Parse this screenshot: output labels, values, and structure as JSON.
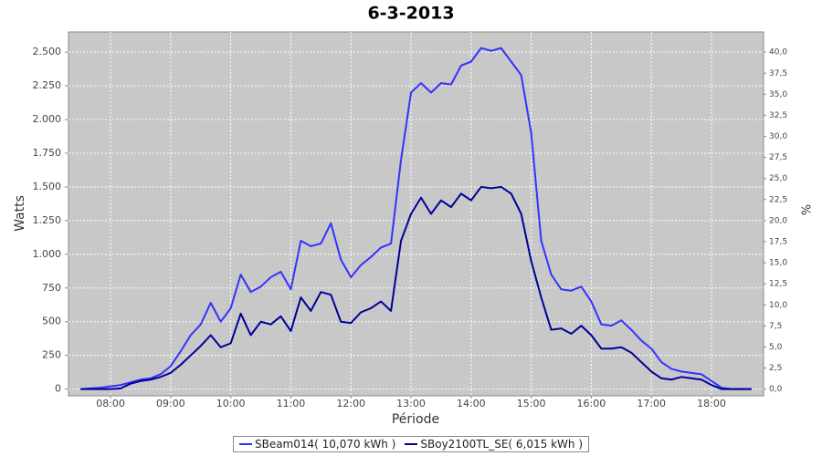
{
  "chart_data": {
    "type": "line",
    "title": "6-3-2013",
    "x_label": "Période",
    "y_label": "Watts",
    "y2_label": "%",
    "x": [
      "07:30",
      "07:40",
      "07:50",
      "08:00",
      "08:10",
      "08:20",
      "08:30",
      "08:40",
      "08:50",
      "09:00",
      "09:10",
      "09:20",
      "09:30",
      "09:40",
      "09:50",
      "10:00",
      "10:10",
      "10:20",
      "10:30",
      "10:40",
      "10:50",
      "11:00",
      "11:10",
      "11:20",
      "11:30",
      "11:40",
      "11:50",
      "12:00",
      "12:10",
      "12:20",
      "12:30",
      "12:40",
      "12:50",
      "13:00",
      "13:10",
      "13:20",
      "13:30",
      "13:40",
      "13:50",
      "14:00",
      "14:10",
      "14:20",
      "14:30",
      "14:40",
      "14:50",
      "15:00",
      "15:10",
      "15:20",
      "15:30",
      "15:40",
      "15:50",
      "16:00",
      "16:10",
      "16:20",
      "16:30",
      "16:40",
      "16:50",
      "17:00",
      "17:10",
      "17:20",
      "17:30",
      "17:40",
      "17:50",
      "18:00",
      "18:10",
      "18:20",
      "18:30",
      "18:40"
    ],
    "xlim": [
      "07:18",
      "18:52"
    ],
    "xticks": [
      "08:00",
      "09:00",
      "10:00",
      "11:00",
      "12:00",
      "13:00",
      "14:00",
      "15:00",
      "16:00",
      "17:00",
      "18:00"
    ],
    "ylim": [
      -50,
      2650
    ],
    "yticks": [
      0,
      {
        "value": 250,
        "label": "250"
      },
      500,
      750,
      {
        "value": 1000,
        "label": "1.000"
      },
      {
        "value": 1250,
        "label": "1.250"
      },
      {
        "value": 1500,
        "label": "1.500"
      },
      {
        "value": 1750,
        "label": "1.750"
      },
      {
        "value": 2000,
        "label": "2.000"
      },
      {
        "value": 2250,
        "label": "2.250"
      },
      {
        "value": 2500,
        "label": "2.500"
      }
    ],
    "y2lim": [
      -0.8,
      42.4
    ],
    "y2ticks": [
      {
        "value": 0,
        "label": "0,0"
      },
      {
        "value": 2.5,
        "label": "2,5"
      },
      {
        "value": 5,
        "label": "5,0"
      },
      {
        "value": 7.5,
        "label": "7,5"
      },
      {
        "value": 10,
        "label": "10,0"
      },
      {
        "value": 12.5,
        "label": "12,5"
      },
      {
        "value": 15,
        "label": "15,0"
      },
      {
        "value": 17.5,
        "label": "17,5"
      },
      {
        "value": 20,
        "label": "20,0"
      },
      {
        "value": 22.5,
        "label": "22,5"
      },
      {
        "value": 25,
        "label": "25,0"
      },
      {
        "value": 27.5,
        "label": "27,5"
      },
      {
        "value": 30,
        "label": "30,0"
      },
      {
        "value": 32.5,
        "label": "32,5"
      },
      {
        "value": 35,
        "label": "35,0"
      },
      {
        "value": 37.5,
        "label": "37,5"
      },
      {
        "value": 40,
        "label": "40,0"
      }
    ],
    "grid": true,
    "legend": "bottom",
    "series": [
      {
        "name": "SBeam014( 10,070 kWh )",
        "color": "#3333ff",
        "values": [
          0,
          5,
          10,
          20,
          30,
          50,
          70,
          80,
          110,
          170,
          280,
          400,
          480,
          640,
          500,
          600,
          850,
          720,
          760,
          830,
          870,
          740,
          1100,
          1060,
          1080,
          1230,
          960,
          830,
          920,
          980,
          1050,
          1080,
          1700,
          2200,
          2270,
          2200,
          2270,
          2260,
          2400,
          2430,
          2530,
          2510,
          2530,
          2430,
          2330,
          1900,
          1100,
          850,
          740,
          730,
          760,
          650,
          480,
          470,
          510,
          440,
          360,
          300,
          200,
          150,
          130,
          120,
          110,
          60,
          10,
          0,
          0,
          0
        ]
      },
      {
        "name": "SBoy2100TL_SE( 6,015 kWh )",
        "color": "#000099",
        "values": [
          0,
          0,
          0,
          0,
          5,
          40,
          60,
          70,
          90,
          120,
          180,
          250,
          320,
          400,
          310,
          340,
          560,
          400,
          500,
          480,
          540,
          430,
          680,
          580,
          720,
          700,
          500,
          490,
          570,
          600,
          650,
          580,
          1100,
          1300,
          1420,
          1300,
          1400,
          1350,
          1450,
          1400,
          1500,
          1490,
          1500,
          1450,
          1300,
          950,
          680,
          440,
          450,
          410,
          470,
          400,
          300,
          300,
          310,
          270,
          200,
          130,
          80,
          70,
          90,
          80,
          70,
          30,
          0,
          0,
          0,
          0
        ]
      }
    ]
  }
}
